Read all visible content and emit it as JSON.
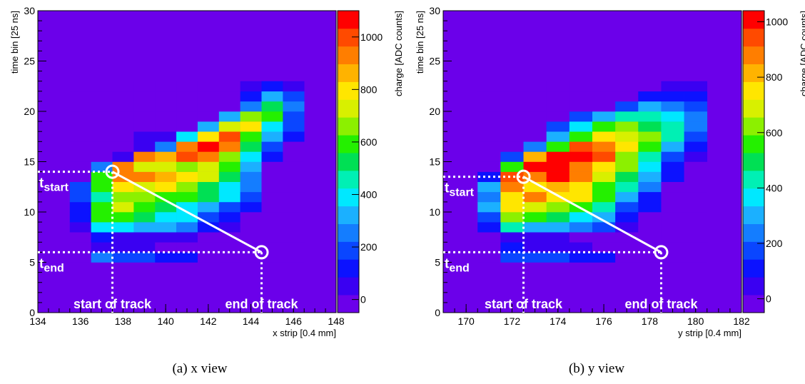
{
  "chart_data": [
    {
      "type": "heatmap",
      "caption": "(a) x view",
      "xlabel": "x strip [0.4 mm]",
      "ylabel": "time bin [25 ns]",
      "zlabel": "charge [ADC counts]",
      "xlim": [
        134,
        148
      ],
      "ylim": [
        0,
        30
      ],
      "zlim": [
        -50,
        1100
      ],
      "xticks": [
        134,
        136,
        138,
        140,
        142,
        144,
        146,
        148
      ],
      "yticks": [
        0,
        5,
        10,
        15,
        20,
        25,
        30
      ],
      "zticks": [
        0,
        200,
        400,
        600,
        800,
        1000
      ],
      "background_value": -40,
      "x_strips": [
        136,
        137,
        138,
        139,
        140,
        141,
        142,
        143,
        144,
        145,
        146
      ],
      "t_start_bin": 5,
      "rows": [
        [
          -40,
          260,
          220,
          200,
          150,
          120,
          -10,
          -10,
          -10,
          -10,
          -10
        ],
        [
          -40,
          80,
          30,
          30,
          -10,
          -10,
          -10,
          -10,
          -10,
          -10,
          -10
        ],
        [
          -40,
          120,
          80,
          50,
          20,
          20,
          -10,
          -10,
          -10,
          -10,
          -10
        ],
        [
          50,
          420,
          360,
          320,
          300,
          250,
          100,
          80,
          -10,
          -10,
          -10
        ],
        [
          100,
          620,
          580,
          520,
          360,
          380,
          200,
          120,
          -10,
          -10,
          -10
        ],
        [
          140,
          560,
          750,
          620,
          520,
          400,
          300,
          200,
          100,
          -10,
          -10
        ],
        [
          200,
          460,
          650,
          650,
          620,
          580,
          500,
          360,
          180,
          -10,
          -10
        ],
        [
          160,
          620,
          800,
          750,
          780,
          640,
          540,
          400,
          250,
          -10,
          -10
        ],
        [
          -40,
          600,
          920,
          900,
          850,
          820,
          720,
          520,
          280,
          -10,
          -10
        ],
        [
          -40,
          250,
          900,
          700,
          720,
          650,
          700,
          560,
          320,
          -10,
          -10
        ],
        [
          -40,
          -40,
          80,
          900,
          880,
          1000,
          940,
          650,
          380,
          100,
          -10
        ],
        [
          -40,
          -40,
          -40,
          60,
          250,
          950,
          1050,
          950,
          520,
          200,
          -10
        ],
        [
          -40,
          -40,
          -40,
          20,
          80,
          400,
          800,
          1000,
          620,
          300,
          150
        ],
        [
          -40,
          -40,
          -40,
          -40,
          -40,
          -40,
          320,
          700,
          820,
          400,
          180
        ],
        [
          -40,
          -40,
          -40,
          -40,
          -40,
          -40,
          -40,
          350,
          640,
          600,
          200
        ],
        [
          -40,
          -40,
          -40,
          -40,
          -40,
          -40,
          -40,
          -40,
          280,
          550,
          260
        ],
        [
          -40,
          -40,
          -40,
          -40,
          -40,
          -40,
          -40,
          -40,
          140,
          300,
          200
        ],
        [
          -40,
          -40,
          -40,
          -40,
          -40,
          -40,
          -40,
          -40,
          20,
          100,
          60
        ]
      ],
      "track": {
        "start": [
          137.5,
          14
        ],
        "end": [
          144.5,
          6
        ]
      },
      "annotations": {
        "t_start": "start",
        "t_end": "end",
        "start_label": "start of track",
        "end_label": "end of track",
        "t_symbol": "t"
      }
    },
    {
      "type": "heatmap",
      "caption": "(b) y view",
      "xlabel": "y strip [0.4 mm]",
      "ylabel": "time bin [25 ns]",
      "zlabel": "charge [ADC counts]",
      "xlim": [
        169,
        182
      ],
      "ylim": [
        0,
        30
      ],
      "zlim": [
        -50,
        1040
      ],
      "xticks": [
        170,
        172,
        174,
        176,
        178,
        180,
        182
      ],
      "yticks": [
        0,
        5,
        10,
        15,
        20,
        25,
        30
      ],
      "zticks": [
        0,
        200,
        400,
        600,
        800,
        1000
      ],
      "background_value": -40,
      "x_strips": [
        171,
        172,
        173,
        174,
        175,
        176,
        177,
        178,
        179,
        180
      ],
      "t_start_bin": 5,
      "rows": [
        [
          -40,
          200,
          180,
          160,
          140,
          100,
          -10,
          -10,
          -10,
          -10
        ],
        [
          -40,
          80,
          40,
          40,
          20,
          -10,
          -10,
          -10,
          -10,
          -10
        ],
        [
          -40,
          60,
          40,
          30,
          -10,
          -10,
          -10,
          -10,
          -10,
          -10
        ],
        [
          140,
          450,
          300,
          280,
          240,
          180,
          60,
          -10,
          -10,
          -10
        ],
        [
          200,
          620,
          560,
          480,
          380,
          300,
          120,
          -10,
          -10,
          -10
        ],
        [
          300,
          720,
          700,
          620,
          540,
          420,
          200,
          80,
          -10,
          -10
        ],
        [
          220,
          760,
          850,
          760,
          720,
          540,
          320,
          140,
          -10,
          -10
        ],
        [
          280,
          900,
          780,
          800,
          720,
          560,
          400,
          220,
          -10,
          -10
        ],
        [
          120,
          940,
          900,
          980,
          880,
          700,
          520,
          300,
          80,
          -10
        ],
        [
          -40,
          550,
          1000,
          1010,
          900,
          780,
          600,
          360,
          120,
          -10
        ],
        [
          -40,
          200,
          800,
          1000,
          1020,
          950,
          650,
          420,
          180,
          40
        ],
        [
          -40,
          -40,
          250,
          560,
          940,
          900,
          780,
          560,
          300,
          100
        ],
        [
          -40,
          -40,
          -40,
          300,
          550,
          750,
          700,
          620,
          400,
          160
        ],
        [
          -40,
          -40,
          -40,
          150,
          380,
          540,
          600,
          520,
          400,
          220
        ],
        [
          -40,
          -40,
          -40,
          -40,
          150,
          320,
          420,
          440,
          380,
          220
        ],
        [
          -40,
          -40,
          -40,
          -40,
          -40,
          -40,
          180,
          300,
          260,
          180
        ],
        [
          -40,
          -40,
          -40,
          -40,
          -40,
          -40,
          -40,
          120,
          140,
          80
        ],
        [
          -40,
          -40,
          -40,
          -40,
          -40,
          -40,
          -40,
          -40,
          40,
          20
        ]
      ],
      "track": {
        "start": [
          172.5,
          13.5
        ],
        "end": [
          178.5,
          6
        ]
      },
      "annotations": {
        "t_start": "start",
        "t_end": "end",
        "start_label": "start of track",
        "end_label": "end of track",
        "t_symbol": "t"
      }
    }
  ]
}
